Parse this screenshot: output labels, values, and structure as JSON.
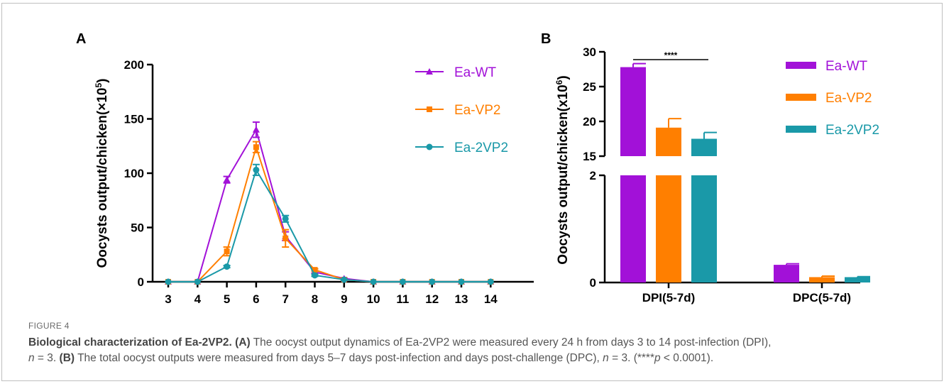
{
  "figure_label": "FIGURE 4",
  "caption": {
    "title": "Biological characterization of Ea-2VP2.",
    "a_tag": "(A)",
    "a_text": " The oocyst output dynamics of Ea-2VP2 were measured every 24 h from days 3 to 14 post-infection (DPI),",
    "n1_italic": "n",
    "n1_rest": " = 3. ",
    "b_tag": "(B)",
    "b_text": " The total oocyst outputs were measured from days 5–7 days post-infection and days post-challenge (DPC), ",
    "n2_italic": "n",
    "n2_rest": " = 3. (****",
    "p_italic": "p",
    "p_rest": " < 0.0001)."
  },
  "panels": {
    "a": "A",
    "b": "B"
  },
  "chart_data": [
    {
      "panel": "A",
      "type": "line",
      "ylabel_main": "Oocysts output/chicken(×10",
      "ylabel_sup": "5",
      "ylabel_end": ")",
      "ylim": [
        0,
        200
      ],
      "yticks": [
        0,
        50,
        100,
        150,
        200
      ],
      "x": [
        3,
        4,
        5,
        6,
        7,
        8,
        9,
        10,
        11,
        12,
        13,
        14
      ],
      "legend_position": "top-right",
      "series": [
        {
          "name": "Ea-WT",
          "color": "#a211d8",
          "marker": "triangle",
          "values": [
            0,
            0,
            94,
            140,
            42,
            9,
            3,
            0,
            0,
            0,
            0,
            0
          ],
          "errors": [
            0,
            0,
            3,
            7,
            4,
            1,
            0.5,
            0,
            0,
            0,
            0,
            0
          ]
        },
        {
          "name": "Ea-VP2",
          "color": "#ff7f00",
          "marker": "square",
          "values": [
            0,
            0,
            28,
            124,
            40,
            11,
            2,
            0,
            0,
            0,
            0,
            0
          ],
          "errors": [
            0,
            0,
            4,
            5,
            8,
            1,
            0.5,
            0,
            0,
            0,
            0,
            0
          ]
        },
        {
          "name": "Ea-2VP2",
          "color": "#1a99a8",
          "marker": "circle",
          "values": [
            0,
            0,
            14,
            103,
            58,
            6,
            2,
            0,
            0,
            0,
            0,
            0
          ],
          "errors": [
            0,
            0,
            1,
            5,
            3,
            1,
            0.5,
            0,
            0,
            0,
            0,
            0
          ]
        }
      ]
    },
    {
      "panel": "B",
      "type": "bar",
      "ylabel_main": "Oocysts output/chicken(x10",
      "ylabel_sup": "6",
      "ylabel_end": ")",
      "axis_break": true,
      "lower_ylim": [
        0,
        2
      ],
      "lower_yticks": [
        0,
        2
      ],
      "upper_ylim": [
        15,
        30
      ],
      "upper_yticks": [
        15,
        20,
        25,
        30
      ],
      "categories": [
        "DPI(5-7d)",
        "DPC(5-7d)"
      ],
      "legend_position": "top-right",
      "series": [
        {
          "name": "Ea-WT",
          "color": "#a211d8",
          "values": [
            27.8,
            0.33
          ],
          "errors": [
            0.5,
            0.02
          ]
        },
        {
          "name": "Ea-VP2",
          "color": "#ff7f00",
          "values": [
            19.1,
            0.1
          ],
          "errors": [
            1.3,
            0.02
          ]
        },
        {
          "name": "Ea-2VP2",
          "color": "#1a99a8",
          "values": [
            17.5,
            0.1
          ],
          "errors": [
            0.9,
            0.01
          ]
        }
      ],
      "annotation": "****"
    }
  ]
}
